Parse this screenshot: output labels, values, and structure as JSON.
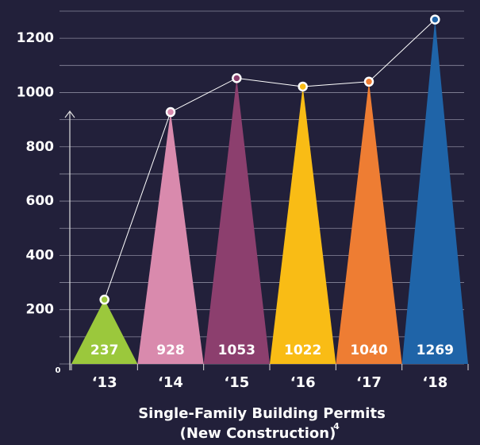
{
  "chart_data": {
    "type": "spike",
    "title": "Single-Family Building Permits",
    "subtitle": "(New Construction)",
    "footnote_mark": "4",
    "categories": [
      "‘13",
      "‘14",
      "‘15",
      "‘16",
      "‘17",
      "‘18"
    ],
    "values": [
      237,
      928,
      1053,
      1022,
      1040,
      1269
    ],
    "colors": [
      "#9bc83c",
      "#d98aad",
      "#8c3f6e",
      "#f9bc15",
      "#ee7d33",
      "#1f64a8"
    ],
    "line_color": "#ffffff",
    "ylim": [
      0,
      1300
    ],
    "yticks": [
      0,
      200,
      400,
      600,
      800,
      1000,
      1200
    ],
    "minor_yticks": [
      100,
      300,
      500,
      700,
      900,
      1100,
      1300
    ],
    "grid": true
  }
}
